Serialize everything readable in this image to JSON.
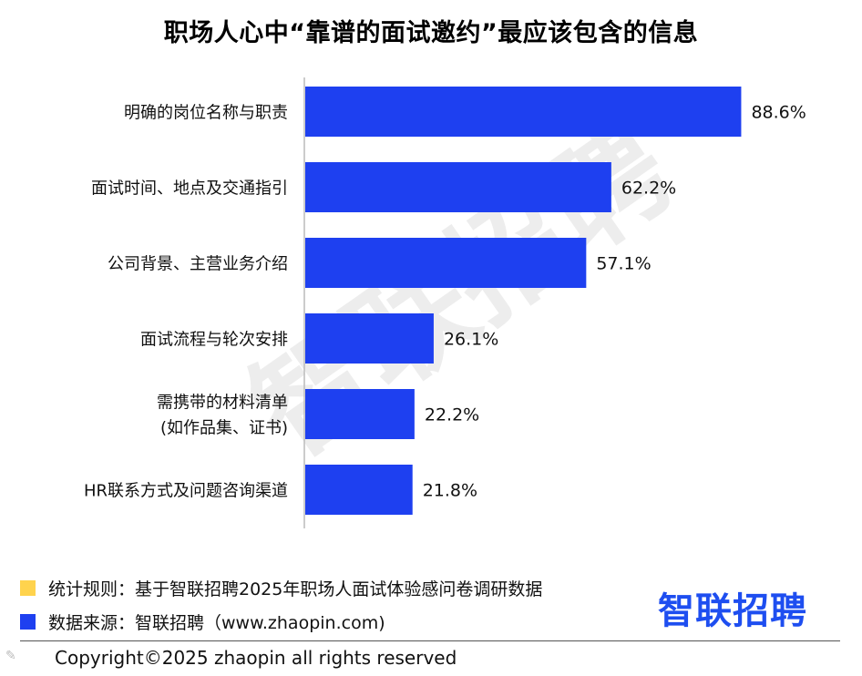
{
  "title": "职场人心中“靠谱的面试邀约”最应该包含的信息",
  "watermark": "智联招聘",
  "chart_data": {
    "type": "bar",
    "orientation": "horizontal",
    "categories": [
      [
        "明确的岗位名称与职责"
      ],
      [
        "面试时间、地点及交通指引"
      ],
      [
        "公司背景、主营业务介绍"
      ],
      [
        "面试流程与轮次安排"
      ],
      [
        "需携带的材料清单",
        "(如作品集、证书)"
      ],
      [
        "HR联系方式及问题咨询渠道"
      ]
    ],
    "values": [
      88.6,
      62.2,
      57.1,
      26.1,
      22.2,
      21.8
    ],
    "value_labels": [
      "88.6%",
      "62.2%",
      "57.1%",
      "26.1%",
      "22.2%",
      "21.8%"
    ],
    "xlim": [
      0,
      100
    ],
    "bar_color": "#1e40f0",
    "grid": false
  },
  "legend": [
    {
      "color": "#ffd34d",
      "text": "统计规则：基于智联招聘2025年职场人面试体验感问卷调研数据"
    },
    {
      "color": "#1e40f0",
      "text": "数据来源：智联招聘（www.zhaopin.com)"
    }
  ],
  "logo": "智联招聘",
  "copyright": "Copyright©2025 zhaopin all rights reserved"
}
